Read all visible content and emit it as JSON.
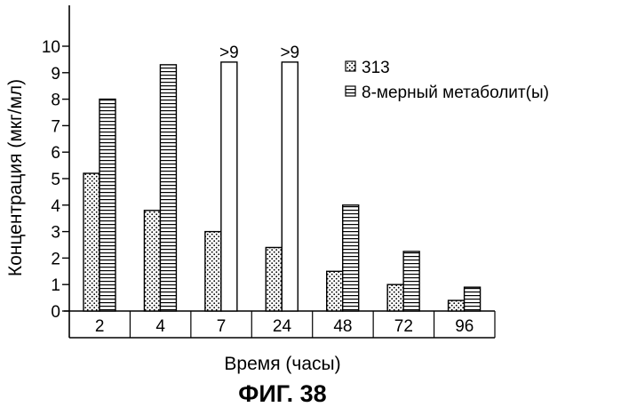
{
  "chart_data": {
    "type": "bar",
    "title": "",
    "xlabel": "Время (часы)",
    "ylabel": "Концентрация (мкг/мл)",
    "ylim": [
      0,
      10
    ],
    "yticks": [
      0,
      1,
      2,
      3,
      4,
      5,
      6,
      7,
      8,
      9,
      10
    ],
    "categories": [
      "2",
      "4",
      "7",
      "24",
      "48",
      "72",
      "96"
    ],
    "series": [
      {
        "name": "313",
        "pattern": "dotted",
        "values": [
          5.2,
          3.8,
          3.0,
          2.4,
          1.5,
          1.0,
          0.4
        ]
      },
      {
        "name": "8-мерный метаболит(ы)",
        "pattern": "hatched",
        "values": [
          8.0,
          9.3,
          9.4,
          9.4,
          4.0,
          2.25,
          0.9
        ]
      }
    ],
    "annotations": [
      {
        "series": 1,
        "category": "7",
        "text": ">9"
      },
      {
        "series": 1,
        "category": "24",
        "text": ">9"
      }
    ],
    "legend_position": "top-right",
    "grid": false,
    "colors": {
      "ink": "#000000",
      "background": "#ffffff"
    }
  },
  "caption": "ФИГ. 38"
}
